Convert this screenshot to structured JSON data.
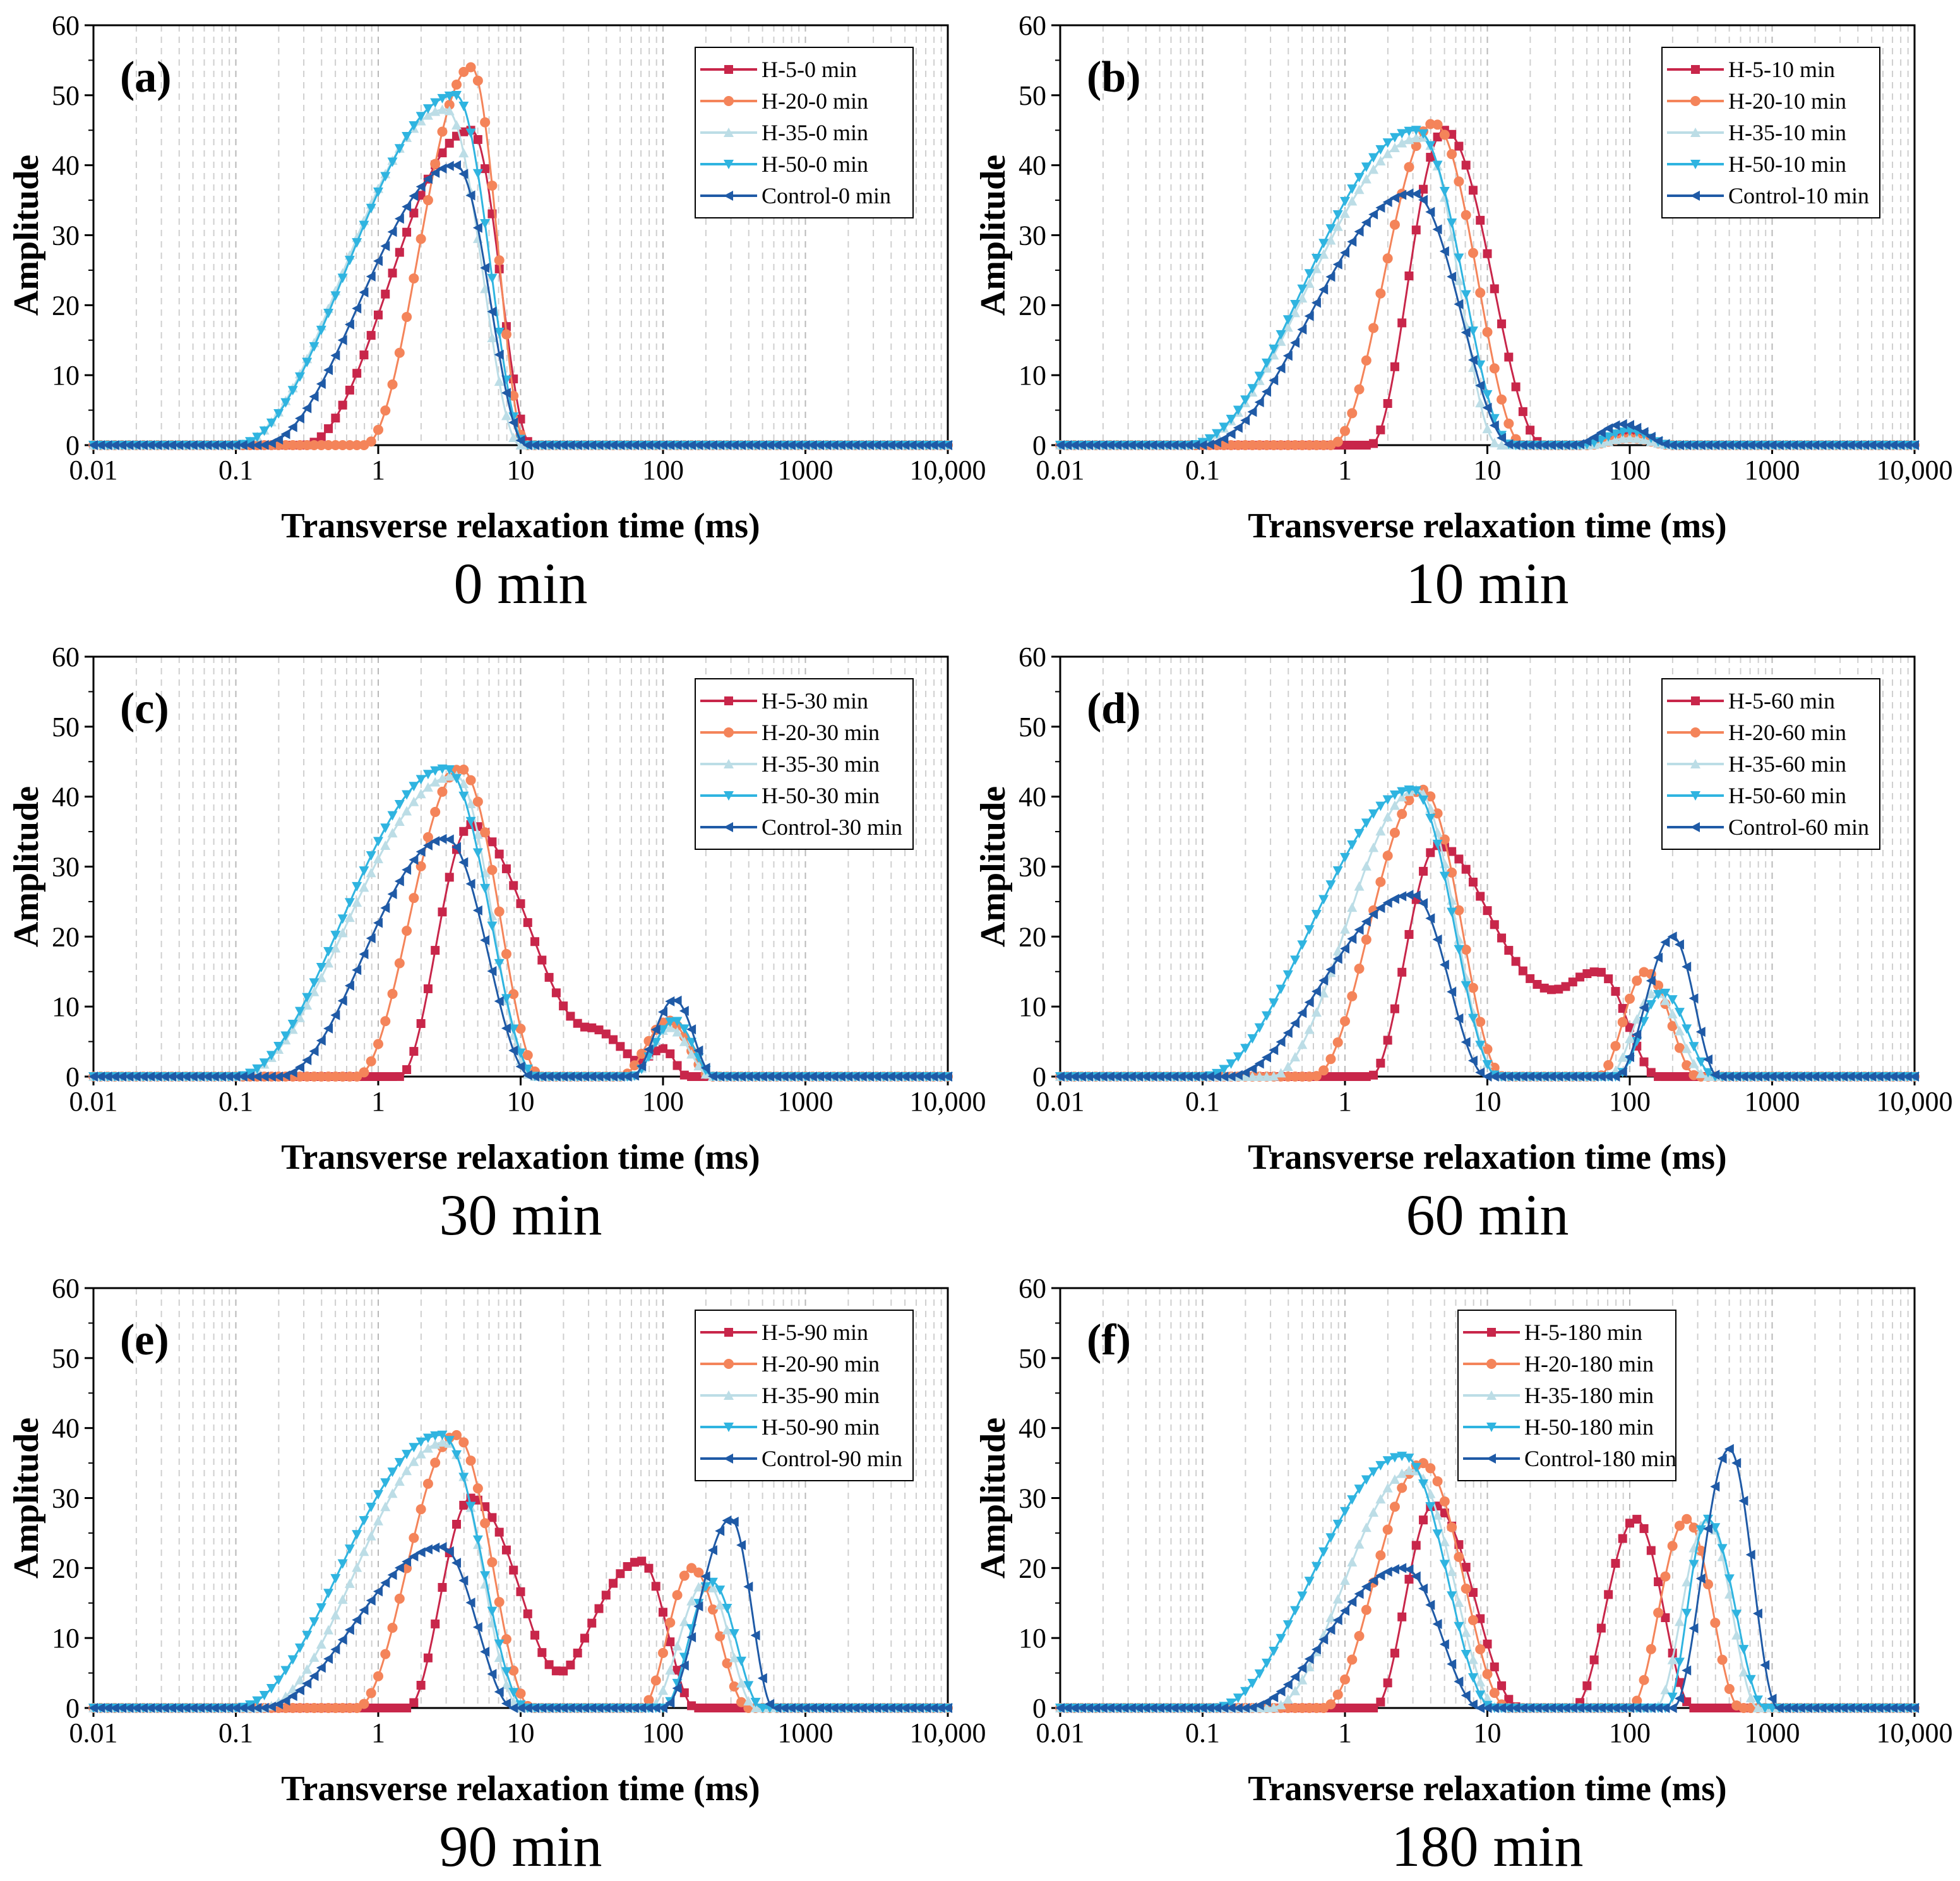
{
  "colors": {
    "H-5": "#c8264a",
    "H-20": "#f4845a",
    "H-35": "#bcdde6",
    "H-50": "#2fb4e0",
    "Control": "#1f5aa6"
  },
  "chart_data": [
    {
      "type": "line",
      "panel_label": "(a)",
      "title": "0 min",
      "xlabel": "Transverse relaxation time (ms)",
      "ylabel": "Amplitude",
      "xscale": "log",
      "xlim": [
        0.01,
        10000
      ],
      "ylim": [
        0,
        60
      ],
      "x_ticks": [
        "0.01",
        "0.1",
        "1",
        "10",
        "100",
        "1000",
        "10,000"
      ],
      "y_ticks": [
        "0",
        "10",
        "20",
        "30",
        "40",
        "50",
        "60"
      ],
      "grid": "vertical dashed",
      "legend": "top-right",
      "series": [
        {
          "name": "H-5-0 min",
          "key": "H-5",
          "marker": "square",
          "peaks": [
            {
              "t2_ms": 4.5,
              "amplitude": 45,
              "from_ms": 0.3,
              "to_ms": 12
            }
          ]
        },
        {
          "name": "H-20-0 min",
          "key": "H-20",
          "marker": "circle",
          "peaks": [
            {
              "t2_ms": 4.5,
              "amplitude": 54,
              "from_ms": 0.8,
              "to_ms": 11
            }
          ]
        },
        {
          "name": "H-35-0 min",
          "key": "H-35",
          "marker": "triangle-up",
          "peaks": [
            {
              "t2_ms": 3,
              "amplitude": 48,
              "from_ms": 0.1,
              "to_ms": 10
            }
          ]
        },
        {
          "name": "H-50-0 min",
          "key": "H-50",
          "marker": "triangle-down",
          "peaks": [
            {
              "t2_ms": 3.5,
              "amplitude": 50,
              "from_ms": 0.1,
              "to_ms": 11
            }
          ]
        },
        {
          "name": "Control-0 min",
          "key": "Control",
          "marker": "triangle-left",
          "peaks": [
            {
              "t2_ms": 3.5,
              "amplitude": 40,
              "from_ms": 0.15,
              "to_ms": 11
            }
          ]
        }
      ]
    },
    {
      "type": "line",
      "panel_label": "(b)",
      "title": "10 min",
      "xlabel": "Transverse relaxation time (ms)",
      "ylabel": "Amplitude",
      "xscale": "log",
      "xlim": [
        0.01,
        10000
      ],
      "ylim": [
        0,
        60
      ],
      "x_ticks": [
        "0.01",
        "0.1",
        "1",
        "10",
        "100",
        "1000",
        "10,000"
      ],
      "y_ticks": [
        "0",
        "10",
        "20",
        "30",
        "40",
        "50",
        "60"
      ],
      "grid": "vertical dashed",
      "legend": "top-right",
      "series": [
        {
          "name": "H-5-10 min",
          "key": "H-5",
          "marker": "square",
          "peaks": [
            {
              "t2_ms": 5,
              "amplitude": 45,
              "from_ms": 1.5,
              "to_ms": 25
            },
            {
              "t2_ms": 100,
              "amplitude": 1.5,
              "from_ms": 50,
              "to_ms": 200
            }
          ]
        },
        {
          "name": "H-20-10 min",
          "key": "H-20",
          "marker": "circle",
          "peaks": [
            {
              "t2_ms": 4.2,
              "amplitude": 46,
              "from_ms": 0.8,
              "to_ms": 18
            },
            {
              "t2_ms": 100,
              "amplitude": 1,
              "from_ms": 50,
              "to_ms": 200
            }
          ]
        },
        {
          "name": "H-35-10 min",
          "key": "H-35",
          "marker": "triangle-up",
          "peaks": [
            {
              "t2_ms": 3.5,
              "amplitude": 44,
              "from_ms": 0.08,
              "to_ms": 12
            },
            {
              "t2_ms": 100,
              "amplitude": 1,
              "from_ms": 50,
              "to_ms": 200
            }
          ]
        },
        {
          "name": "H-50-10 min",
          "key": "H-50",
          "marker": "triangle-down",
          "peaks": [
            {
              "t2_ms": 3.2,
              "amplitude": 45,
              "from_ms": 0.08,
              "to_ms": 15
            },
            {
              "t2_ms": 100,
              "amplitude": 2,
              "from_ms": 45,
              "to_ms": 200
            }
          ]
        },
        {
          "name": "Control-10 min",
          "key": "Control",
          "marker": "triangle-left",
          "peaks": [
            {
              "t2_ms": 3,
              "amplitude": 36,
              "from_ms": 0.1,
              "to_ms": 15
            },
            {
              "t2_ms": 90,
              "amplitude": 3,
              "from_ms": 40,
              "to_ms": 200
            }
          ]
        }
      ]
    },
    {
      "type": "line",
      "panel_label": "(c)",
      "title": "30 min",
      "xlabel": "Transverse relaxation time (ms)",
      "ylabel": "Amplitude",
      "xscale": "log",
      "xlim": [
        0.01,
        10000
      ],
      "ylim": [
        0,
        60
      ],
      "x_ticks": [
        "0.01",
        "0.1",
        "1",
        "10",
        "100",
        "1000",
        "10,000"
      ],
      "y_ticks": [
        "0",
        "10",
        "20",
        "30",
        "40",
        "50",
        "60"
      ],
      "grid": "vertical dashed",
      "legend": "top-right",
      "series": [
        {
          "name": "H-5-30 min",
          "key": "H-5",
          "marker": "square",
          "peaks": [
            {
              "t2_ms": 4.5,
              "amplitude": 36,
              "from_ms": 1.4,
              "to_ms": 30
            },
            {
              "t2_ms": 30,
              "amplitude": 7,
              "from_ms": 5,
              "to_ms": 100
            },
            {
              "t2_ms": 100,
              "amplitude": 4,
              "from_ms": 60,
              "to_ms": 150
            }
          ]
        },
        {
          "name": "H-20-30 min",
          "key": "H-20",
          "marker": "circle",
          "peaks": [
            {
              "t2_ms": 3.8,
              "amplitude": 44,
              "from_ms": 0.7,
              "to_ms": 14
            },
            {
              "t2_ms": 110,
              "amplitude": 8,
              "from_ms": 50,
              "to_ms": 220
            }
          ]
        },
        {
          "name": "H-35-30 min",
          "key": "H-35",
          "marker": "triangle-up",
          "peaks": [
            {
              "t2_ms": 3.5,
              "amplitude": 43,
              "from_ms": 0.1,
              "to_ms": 12
            },
            {
              "t2_ms": 110,
              "amplitude": 7,
              "from_ms": 60,
              "to_ms": 220
            }
          ]
        },
        {
          "name": "H-50-30 min",
          "key": "H-50",
          "marker": "triangle-down",
          "peaks": [
            {
              "t2_ms": 3,
              "amplitude": 44,
              "from_ms": 0.1,
              "to_ms": 13
            },
            {
              "t2_ms": 120,
              "amplitude": 8,
              "from_ms": 60,
              "to_ms": 230
            }
          ]
        },
        {
          "name": "Control-30 min",
          "key": "Control",
          "marker": "triangle-left",
          "peaks": [
            {
              "t2_ms": 3,
              "amplitude": 34,
              "from_ms": 0.2,
              "to_ms": 12
            },
            {
              "t2_ms": 120,
              "amplitude": 11,
              "from_ms": 60,
              "to_ms": 230
            }
          ]
        }
      ]
    },
    {
      "type": "line",
      "panel_label": "(d)",
      "title": "60 min",
      "xlabel": "Transverse relaxation time (ms)",
      "ylabel": "Amplitude",
      "xscale": "log",
      "xlim": [
        0.01,
        10000
      ],
      "ylim": [
        0,
        60
      ],
      "x_ticks": [
        "0.01",
        "0.1",
        "1",
        "10",
        "100",
        "1000",
        "10,000"
      ],
      "y_ticks": [
        "0",
        "10",
        "20",
        "30",
        "40",
        "50",
        "60"
      ],
      "grid": "vertical dashed",
      "legend": "top-right",
      "series": [
        {
          "name": "H-5-60 min",
          "key": "H-5",
          "marker": "square",
          "peaks": [
            {
              "t2_ms": 4.5,
              "amplitude": 33,
              "from_ms": 1.5,
              "to_ms": 40
            },
            {
              "t2_ms": 60,
              "amplitude": 15,
              "from_ms": 8,
              "to_ms": 160
            }
          ]
        },
        {
          "name": "H-20-60 min",
          "key": "H-20",
          "marker": "circle",
          "peaks": [
            {
              "t2_ms": 3.5,
              "amplitude": 41,
              "from_ms": 0.6,
              "to_ms": 13
            },
            {
              "t2_ms": 130,
              "amplitude": 15,
              "from_ms": 60,
              "to_ms": 300
            }
          ]
        },
        {
          "name": "H-35-60 min",
          "key": "H-35",
          "marker": "triangle-up",
          "peaks": [
            {
              "t2_ms": 3.2,
              "amplitude": 41,
              "from_ms": 0.3,
              "to_ms": 12
            },
            {
              "t2_ms": 150,
              "amplitude": 12,
              "from_ms": 70,
              "to_ms": 350
            }
          ]
        },
        {
          "name": "H-50-60 min",
          "key": "H-50",
          "marker": "triangle-down",
          "peaks": [
            {
              "t2_ms": 3,
              "amplitude": 41,
              "from_ms": 0.1,
              "to_ms": 12
            },
            {
              "t2_ms": 170,
              "amplitude": 12,
              "from_ms": 80,
              "to_ms": 400
            }
          ]
        },
        {
          "name": "Control-60 min",
          "key": "Control",
          "marker": "triangle-left",
          "peaks": [
            {
              "t2_ms": 3,
              "amplitude": 26,
              "from_ms": 0.15,
              "to_ms": 10
            },
            {
              "t2_ms": 200,
              "amplitude": 20,
              "from_ms": 80,
              "to_ms": 420
            }
          ]
        }
      ]
    },
    {
      "type": "line",
      "panel_label": "(e)",
      "title": "90 min",
      "xlabel": "Transverse relaxation time (ms)",
      "ylabel": "Amplitude",
      "xscale": "log",
      "xlim": [
        0.01,
        10000
      ],
      "ylim": [
        0,
        60
      ],
      "x_ticks": [
        "0.01",
        "0.1",
        "1",
        "10",
        "100",
        "1000",
        "10,000"
      ],
      "y_ticks": [
        "0",
        "10",
        "20",
        "30",
        "40",
        "50",
        "60"
      ],
      "grid": "vertical dashed",
      "legend": "top-right",
      "series": [
        {
          "name": "H-5-90 min",
          "key": "H-5",
          "marker": "square",
          "peaks": [
            {
              "t2_ms": 4.5,
              "amplitude": 30,
              "from_ms": 1.6,
              "to_ms": 25
            },
            {
              "t2_ms": 70,
              "amplitude": 21,
              "from_ms": 12,
              "to_ms": 170
            }
          ]
        },
        {
          "name": "H-20-90 min",
          "key": "H-20",
          "marker": "circle",
          "peaks": [
            {
              "t2_ms": 3.5,
              "amplitude": 39,
              "from_ms": 0.7,
              "to_ms": 12
            },
            {
              "t2_ms": 160,
              "amplitude": 20,
              "from_ms": 70,
              "to_ms": 400
            }
          ]
        },
        {
          "name": "H-35-90 min",
          "key": "H-35",
          "marker": "triangle-up",
          "peaks": [
            {
              "t2_ms": 3,
              "amplitude": 38,
              "from_ms": 0.15,
              "to_ms": 10
            },
            {
              "t2_ms": 200,
              "amplitude": 18,
              "from_ms": 80,
              "to_ms": 450
            }
          ]
        },
        {
          "name": "H-50-90 min",
          "key": "H-50",
          "marker": "triangle-down",
          "peaks": [
            {
              "t2_ms": 2.8,
              "amplitude": 39,
              "from_ms": 0.1,
              "to_ms": 11
            },
            {
              "t2_ms": 220,
              "amplitude": 18,
              "from_ms": 100,
              "to_ms": 500
            }
          ]
        },
        {
          "name": "Control-90 min",
          "key": "Control",
          "marker": "triangle-left",
          "peaks": [
            {
              "t2_ms": 2.8,
              "amplitude": 23,
              "from_ms": 0.15,
              "to_ms": 9
            },
            {
              "t2_ms": 300,
              "amplitude": 27,
              "from_ms": 100,
              "to_ms": 600
            }
          ]
        }
      ]
    },
    {
      "type": "line",
      "panel_label": "(f)",
      "title": "180 min",
      "xlabel": "Transverse relaxation time (ms)",
      "ylabel": "Amplitude",
      "xscale": "log",
      "xlim": [
        0.01,
        10000
      ],
      "ylim": [
        0,
        60
      ],
      "x_ticks": [
        "0.01",
        "0.1",
        "1",
        "10",
        "100",
        "1000",
        "10,000"
      ],
      "y_ticks": [
        "0",
        "10",
        "20",
        "30",
        "40",
        "50",
        "60"
      ],
      "grid": "vertical dashed",
      "legend": "top-center",
      "series": [
        {
          "name": "H-5-180 min",
          "key": "H-5",
          "marker": "square",
          "peaks": [
            {
              "t2_ms": 4.2,
              "amplitude": 29,
              "from_ms": 1.6,
              "to_ms": 17
            },
            {
              "t2_ms": 110,
              "amplitude": 27,
              "from_ms": 40,
              "to_ms": 280
            }
          ]
        },
        {
          "name": "H-20-180 min",
          "key": "H-20",
          "marker": "circle",
          "peaks": [
            {
              "t2_ms": 3.5,
              "amplitude": 35,
              "from_ms": 0.7,
              "to_ms": 14
            },
            {
              "t2_ms": 250,
              "amplitude": 27,
              "from_ms": 100,
              "to_ms": 600
            }
          ]
        },
        {
          "name": "H-35-180 min",
          "key": "H-35",
          "marker": "triangle-up",
          "peaks": [
            {
              "t2_ms": 3,
              "amplitude": 34,
              "from_ms": 0.3,
              "to_ms": 12
            },
            {
              "t2_ms": 350,
              "amplitude": 27,
              "from_ms": 150,
              "to_ms": 800
            }
          ]
        },
        {
          "name": "H-50-180 min",
          "key": "H-50",
          "marker": "triangle-down",
          "peaks": [
            {
              "t2_ms": 2.6,
              "amplitude": 36,
              "from_ms": 0.12,
              "to_ms": 11
            },
            {
              "t2_ms": 350,
              "amplitude": 27,
              "from_ms": 180,
              "to_ms": 900
            }
          ]
        },
        {
          "name": "Control-180 min",
          "key": "Control",
          "marker": "triangle-left",
          "peaks": [
            {
              "t2_ms": 2.6,
              "amplitude": 20,
              "from_ms": 0.2,
              "to_ms": 9
            },
            {
              "t2_ms": 500,
              "amplitude": 37,
              "from_ms": 200,
              "to_ms": 1100
            }
          ]
        }
      ]
    }
  ]
}
